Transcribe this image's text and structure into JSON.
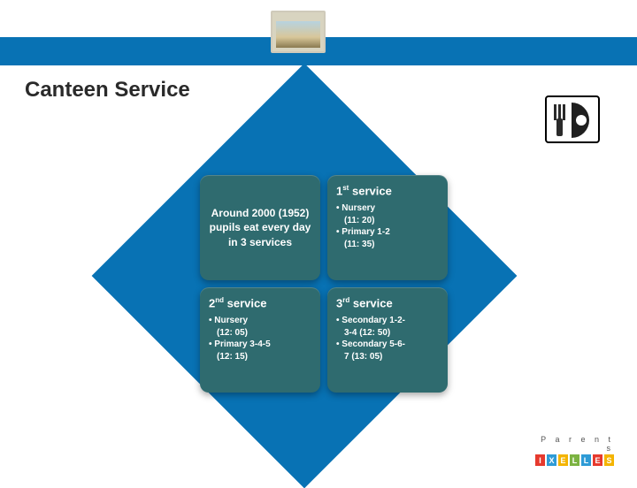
{
  "header_bar_color": "#0872b4",
  "title": "Canteen Service",
  "title_color": "#2a2a2a",
  "diamond_color": "#0872b4",
  "panel_bg": "#2f6b6f",
  "panel_text_color": "#ffffff",
  "intro_panel": {
    "text": "Around 2000 (1952) pupils eat every day in 3 services"
  },
  "services": [
    {
      "ordinal": "1",
      "suffix": "st",
      "label": "service",
      "items": [
        {
          "line1": "Nursery",
          "line2": "(11: 20)"
        },
        {
          "line1": "Primary 1-2",
          "line2": "(11: 35)"
        }
      ]
    },
    {
      "ordinal": "2",
      "suffix": "nd",
      "label": "service",
      "items": [
        {
          "line1": "Nursery",
          "line2": "(12: 05)"
        },
        {
          "line1": "Primary 3-4-5",
          "line2": "(12: 15)"
        }
      ]
    },
    {
      "ordinal": "3",
      "suffix": "rd",
      "label": "service",
      "items": [
        {
          "line1": "Secondary 1-2-",
          "line2": "3-4 (12: 50)"
        },
        {
          "line1": "Secondary 5-6-",
          "line2": "7 (13: 05)"
        }
      ]
    }
  ],
  "plate_icon": {
    "bg": "#ffffff",
    "border": "#000000",
    "plate": "#1f1f1f",
    "cutlery": "#2a2a2a"
  },
  "logo": {
    "top_text": "P a r e n t s",
    "letters": [
      "I",
      "X",
      "E",
      "L",
      "L",
      "E",
      "S"
    ],
    "colors": [
      "#e63a2e",
      "#2e9bd6",
      "#f4b400",
      "#7cb342",
      "#2e9bd6",
      "#e63a2e",
      "#f4b400"
    ]
  }
}
